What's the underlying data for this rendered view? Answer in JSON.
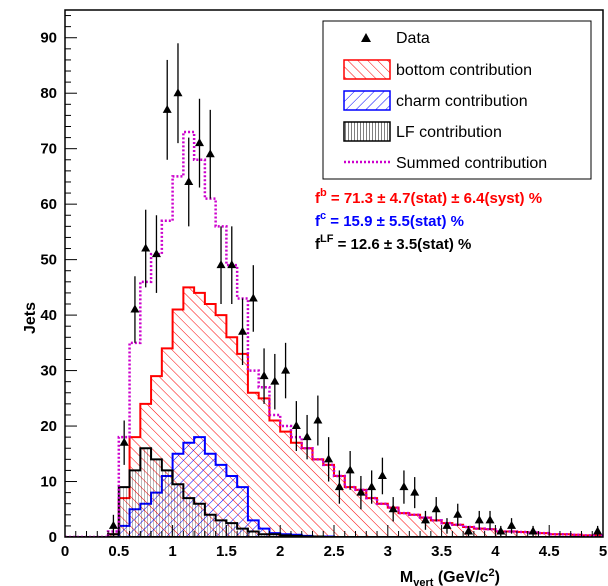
{
  "chart_data": {
    "type": "histogram",
    "xlabel": {
      "main": "M",
      "sub": "vert",
      "rest": " (GeV/c",
      "sup": "2",
      "end": ")"
    },
    "ylabel": "Jets",
    "xlim": [
      0,
      5
    ],
    "ylim": [
      0,
      95
    ],
    "xticks": [
      "0",
      "0.5",
      "1",
      "1.5",
      "2",
      "2.5",
      "3",
      "3.5",
      "4",
      "4.5",
      "5"
    ],
    "yticks": [
      "0",
      "10",
      "20",
      "30",
      "40",
      "50",
      "60",
      "70",
      "80",
      "90"
    ],
    "bin_width": 0.1,
    "bin_start": 0.4,
    "legend": {
      "data": "Data",
      "bottom": "bottom contribution",
      "charm": "charm contribution",
      "lf": "LF contribution",
      "sum": "Summed contribution"
    },
    "fit_results": [
      {
        "sym": "f",
        "sup": "b",
        "text": " =  71.3 ±  4.7(stat) ± 6.4(syst) %",
        "color": "#ff0000"
      },
      {
        "sym": "f",
        "sup": "c",
        "text": " =  15.9 ±  5.5(stat) %",
        "color": "#0000ff"
      },
      {
        "sym": "f",
        "sup": "LF",
        "text": " =  12.6 ±  3.5(stat) %",
        "color": "#000000"
      }
    ],
    "colors": {
      "bottom": "#ff0000",
      "charm": "#0000ff",
      "lf": "#000000",
      "sum": "#cc00cc"
    },
    "series": [
      {
        "name": "bottom contribution",
        "values": [
          0.5,
          7,
          18,
          24,
          29,
          34,
          41,
          45,
          44,
          42,
          40,
          36,
          33,
          26,
          25,
          21,
          19,
          17,
          16,
          14,
          13,
          11,
          9,
          8.5,
          7,
          6,
          5.3,
          4.3,
          4,
          3.5,
          3,
          2.5,
          2.2,
          1.8,
          1.5,
          1.4,
          1,
          1,
          0.9,
          0.8,
          0.7,
          0.5,
          0.5,
          0.4,
          0.3,
          0.3
        ]
      },
      {
        "name": "charm contribution",
        "values": [
          0,
          2,
          5,
          6,
          8,
          11,
          15,
          17,
          18,
          15,
          13,
          11,
          9,
          3,
          1.5,
          0.7,
          0.5,
          0.4,
          0.2,
          0.1,
          0.1,
          0,
          0,
          0,
          0,
          0,
          0,
          0,
          0,
          0,
          0,
          0,
          0,
          0,
          0,
          0,
          0,
          0,
          0,
          0,
          0,
          0,
          0,
          0,
          0,
          0
        ]
      },
      {
        "name": "LF contribution",
        "values": [
          0.5,
          9,
          12,
          16,
          14,
          12,
          9.5,
          7,
          6,
          4,
          3,
          2.5,
          1.5,
          1,
          0.5,
          0.5,
          0.3,
          0.2,
          0.1,
          0.1,
          0,
          0,
          0,
          0,
          0,
          0,
          0,
          0,
          0,
          0,
          0,
          0,
          0,
          0,
          0,
          0,
          0,
          0,
          0,
          0,
          0,
          0,
          0,
          0,
          0,
          0
        ]
      },
      {
        "name": "Summed contribution",
        "values": [
          1,
          18,
          35,
          46,
          51,
          57,
          65,
          73,
          68,
          61,
          56,
          49,
          43,
          30,
          27,
          22,
          20,
          18,
          16,
          14,
          13,
          11,
          9,
          8.5,
          7,
          6,
          5.3,
          4.3,
          4,
          3.5,
          3,
          2.5,
          2.2,
          1.8,
          1.5,
          1.4,
          1,
          1,
          0.9,
          0.8,
          0.7,
          0.5,
          0.5,
          0.4,
          0.3,
          0.3
        ]
      },
      {
        "name": "Data",
        "points": [
          [
            0.05,
            0,
            0
          ],
          [
            0.15,
            0,
            0
          ],
          [
            0.25,
            0,
            0
          ],
          [
            0.35,
            0,
            0
          ],
          [
            0.45,
            2,
            2
          ],
          [
            0.55,
            17,
            4
          ],
          [
            0.65,
            41,
            6
          ],
          [
            0.75,
            52,
            7
          ],
          [
            0.85,
            51,
            7
          ],
          [
            0.95,
            77,
            9
          ],
          [
            1.05,
            80,
            9
          ],
          [
            1.15,
            64,
            8
          ],
          [
            1.25,
            71,
            8
          ],
          [
            1.35,
            69,
            8
          ],
          [
            1.45,
            49,
            7
          ],
          [
            1.55,
            49,
            7
          ],
          [
            1.65,
            37,
            6
          ],
          [
            1.75,
            43,
            6
          ],
          [
            1.85,
            29,
            5
          ],
          [
            1.95,
            28,
            5
          ],
          [
            2.05,
            30,
            5
          ],
          [
            2.15,
            20,
            4.5
          ],
          [
            2.25,
            18,
            4
          ],
          [
            2.35,
            21,
            4.5
          ],
          [
            2.45,
            14,
            4
          ],
          [
            2.55,
            9,
            3
          ],
          [
            2.65,
            12,
            3.5
          ],
          [
            2.75,
            8,
            3
          ],
          [
            2.85,
            9,
            3
          ],
          [
            2.95,
            11,
            3.3
          ],
          [
            3.05,
            5,
            2.2
          ],
          [
            3.15,
            9,
            3
          ],
          [
            3.25,
            8,
            2.8
          ],
          [
            3.35,
            3,
            1.7
          ],
          [
            3.45,
            5,
            2.2
          ],
          [
            3.55,
            2,
            1.4
          ],
          [
            3.65,
            4,
            2
          ],
          [
            3.75,
            1,
            1
          ],
          [
            3.85,
            3,
            1.7
          ],
          [
            3.95,
            3,
            1.7
          ],
          [
            4.05,
            1,
            1
          ],
          [
            4.15,
            2,
            1.4
          ],
          [
            4.25,
            0,
            0
          ],
          [
            4.35,
            1,
            1
          ],
          [
            4.45,
            0,
            0
          ],
          [
            4.55,
            0,
            0
          ],
          [
            4.65,
            0,
            0
          ],
          [
            4.75,
            0,
            0
          ],
          [
            4.85,
            0,
            0
          ],
          [
            4.95,
            1,
            1
          ]
        ]
      }
    ]
  }
}
